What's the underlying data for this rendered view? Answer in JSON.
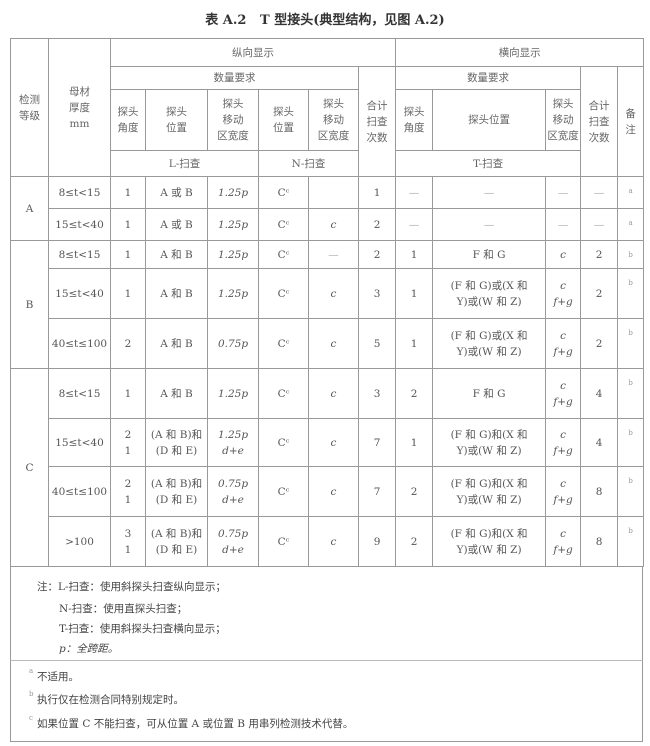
{
  "title": "表 A.2   T 型接头(典型结构，见图 A.2)",
  "header": {
    "grade": "检测\n等级",
    "thickness": "母材\n厚度\nmm",
    "longitudinal": "纵向显示",
    "transverse": "横向显示",
    "quantity_req": "数量要求",
    "probe_angle": "探头\n角度",
    "probe_position": "探头\n位置",
    "probe_move_width": "探头\n移动\n区宽度",
    "n_probe_position": "探头\n位置",
    "n_probe_move_width": "探头\n移动\n区宽度",
    "total_scans": "合计\n扫查\n次数",
    "t_probe_angle": "探头\n角度",
    "t_probe_position": "探头位置",
    "t_probe_move_width": "探头\n移动\n区宽度",
    "t_total_scans": "合计\n扫查\n次数",
    "remarks": "备\n注",
    "l_scan": "L-扫查",
    "n_scan": "N-扫查",
    "t_scan": "T-扫查"
  },
  "groups": [
    {
      "grade": "A",
      "rows": [
        [
          "8≤t<15",
          "1",
          "A 或 B",
          "1.25p",
          "Cᶜ",
          "",
          "1",
          "—",
          "—",
          "—",
          "—",
          "a"
        ],
        [
          "15≤t<40",
          "1",
          "A 或 B",
          "1.25p",
          "Cᶜ",
          "c",
          "2",
          "—",
          "—",
          "—",
          "—",
          "a"
        ]
      ]
    },
    {
      "grade": "B",
      "rows": [
        [
          "8≤t<15",
          "1",
          "A 和 B",
          "1.25p",
          "Cᶜ",
          "—",
          "2",
          "1",
          "F 和 G",
          "c",
          "2",
          "b"
        ],
        [
          "15≤t<40",
          "1",
          "A 和 B",
          "1.25p",
          "Cᶜ",
          "c",
          "3",
          "1",
          "(F 和 G)或(X 和\nY)或(W 和 Z)",
          "c\nf+g",
          "2",
          "b"
        ],
        [
          "40≤t≤100",
          "2",
          "A 和 B",
          "0.75p",
          "Cᶜ",
          "c",
          "5",
          "1",
          "(F 和 G)或(X 和\nY)或(W 和 Z)",
          "c\nf+g",
          "2",
          "b"
        ]
      ]
    },
    {
      "grade": "C",
      "rows": [
        [
          "8≤t<15",
          "1",
          "A 和 B",
          "1.25p",
          "Cᶜ",
          "c",
          "3",
          "2",
          "F 和 G",
          "c\nf+g",
          "4",
          "b"
        ],
        [
          "15≤t<40",
          "2\n1",
          "(A 和 B)和\n(D 和 E)",
          "1.25p\nd+e",
          "Cᶜ",
          "c",
          "7",
          "1",
          "(F 和 G)和(X 和\nY)或(W 和 Z)",
          "c\nf+g",
          "4",
          "b"
        ],
        [
          "40≤t≤100",
          "2\n1",
          "(A 和 B)和\n(D 和 E)",
          "0.75p\nd+e",
          "Cᶜ",
          "c",
          "7",
          "2",
          "(F 和 G)和(X 和\nY)或(W 和 Z)",
          "c\nf+g",
          "8",
          "b"
        ],
        [
          ">100",
          "3\n1",
          "(A 和 B)和\n(D 和 E)",
          "0.75p\nd+e",
          "Cᶜ",
          "c",
          "9",
          "2",
          "(F 和 G)和(X 和\nY)或(W 和 Z)",
          "c\nf+g",
          "8",
          "b"
        ]
      ]
    }
  ],
  "notes": [
    "注：L-扫查：使用斜探头扫查纵向显示；",
    "N-扫查：使用直探头扫查；",
    "T-扫查：使用斜探头扫查横向显示；",
    "p：全跨距。"
  ],
  "footnotes": [
    {
      "mark": "a",
      "text": "不适用。"
    },
    {
      "mark": "b",
      "text": "执行仅在检测合同特别规定时。"
    },
    {
      "mark": "c",
      "text": "如果位置 C 不能扫查，可从位置 A 或位置 B 用串列检测技术代替。"
    }
  ]
}
